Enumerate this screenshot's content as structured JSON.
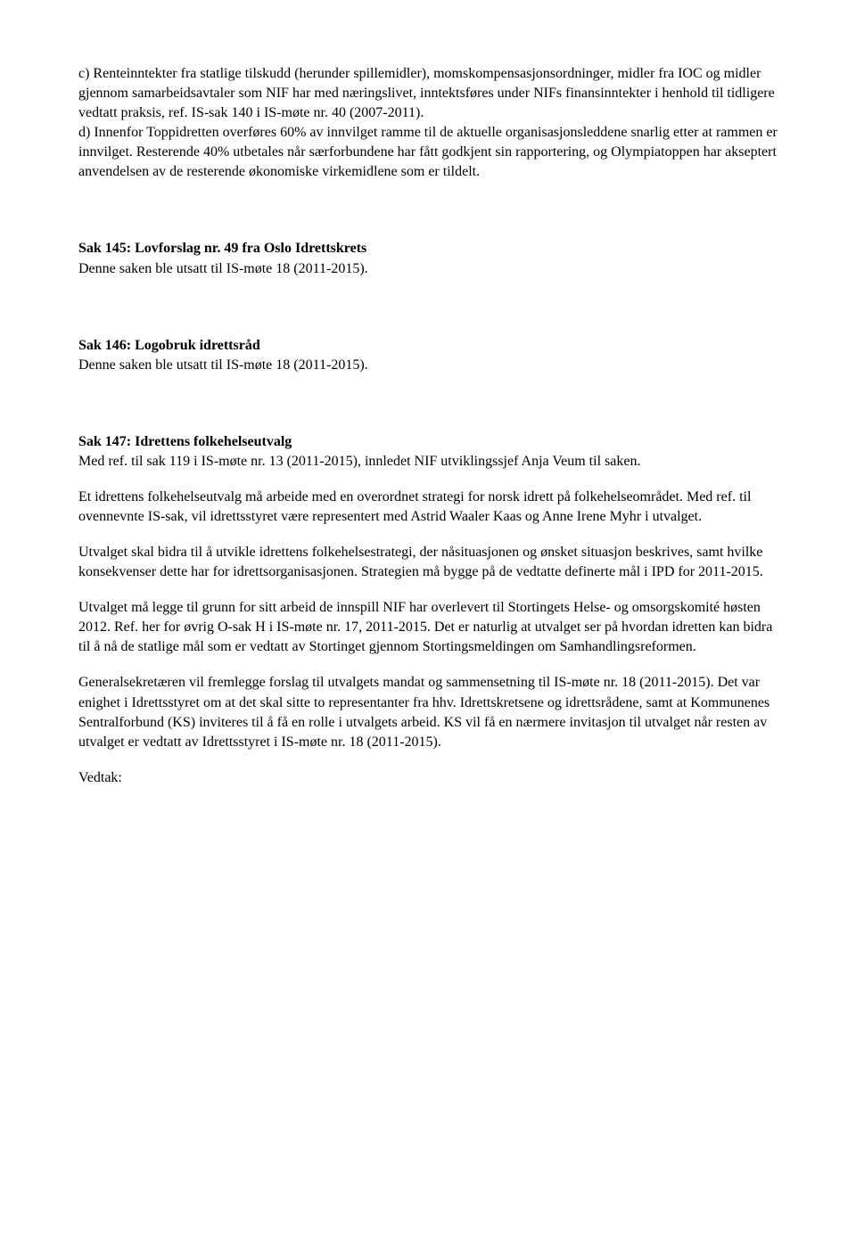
{
  "para_c_d": "c) Renteinntekter fra statlige tilskudd (herunder spillemidler), momskompensasjonsordninger, midler fra IOC og midler gjennom samarbeidsavtaler som NIF har med næringslivet, inntektsføres under NIFs finansinntekter i henhold til tidligere vedtatt praksis, ref. IS-sak 140 i IS-møte nr. 40 (2007-2011).\nd) Innenfor Toppidretten overføres 60% av innvilget ramme til de aktuelle organisasjonsleddene snarlig etter at rammen er innvilget. Resterende 40% utbetales når særforbundene har fått godkjent sin rapportering, og Olympiatoppen har akseptert anvendelsen av de resterende økonomiske virkemidlene som er tildelt.",
  "sak145": {
    "heading": "Sak 145: Lovforslag nr. 49 fra Oslo Idrettskrets",
    "body": "Denne saken ble utsatt til IS-møte 18 (2011-2015)."
  },
  "sak146": {
    "heading": "Sak 146: Logobruk idrettsråd",
    "body": "Denne saken ble utsatt til IS-møte 18 (2011-2015)."
  },
  "sak147": {
    "heading": "Sak 147: Idrettens folkehelseutvalg",
    "p1": "Med ref. til sak 119 i IS-møte nr. 13 (2011-2015), innledet NIF utviklingssjef Anja Veum til saken.",
    "p2": "Et idrettens folkehelseutvalg må arbeide med en overordnet strategi for norsk idrett på folkehelseområdet. Med ref. til ovennevnte IS-sak, vil idrettsstyret være representert med Astrid Waaler Kaas og Anne Irene Myhr i utvalget.",
    "p3": "Utvalget skal bidra til å utvikle idrettens folkehelsestrategi, der nåsituasjonen og ønsket situasjon beskrives, samt hvilke konsekvenser dette har for idrettsorganisasjonen. Strategien må bygge på de vedtatte definerte mål i IPD for 2011-2015.",
    "p4": "Utvalget må legge til grunn for sitt arbeid de innspill NIF har overlevert til Stortingets Helse- og omsorgskomité høsten 2012. Ref. her for øvrig O-sak H i IS-møte nr. 17, 2011-2015. Det er naturlig at utvalget ser på hvordan idretten kan bidra til å nå de statlige mål som er vedtatt av Stortinget gjennom Stortingsmeldingen om Samhandlingsreformen.",
    "p5": "Generalsekretæren vil fremlegge forslag til utvalgets mandat og sammensetning til IS-møte nr. 18 (2011-2015). Det var enighet i Idrettsstyret om at det skal sitte to representanter fra hhv. Idrettskretsene og idrettsrådene, samt at Kommunenes Sentralforbund (KS) inviteres til å få en rolle i utvalgets arbeid. KS vil få en nærmere invitasjon til utvalget når resten av utvalget er vedtatt av Idrettsstyret i IS-møte nr. 18 (2011-2015)."
  },
  "vedtak": "Vedtak:"
}
